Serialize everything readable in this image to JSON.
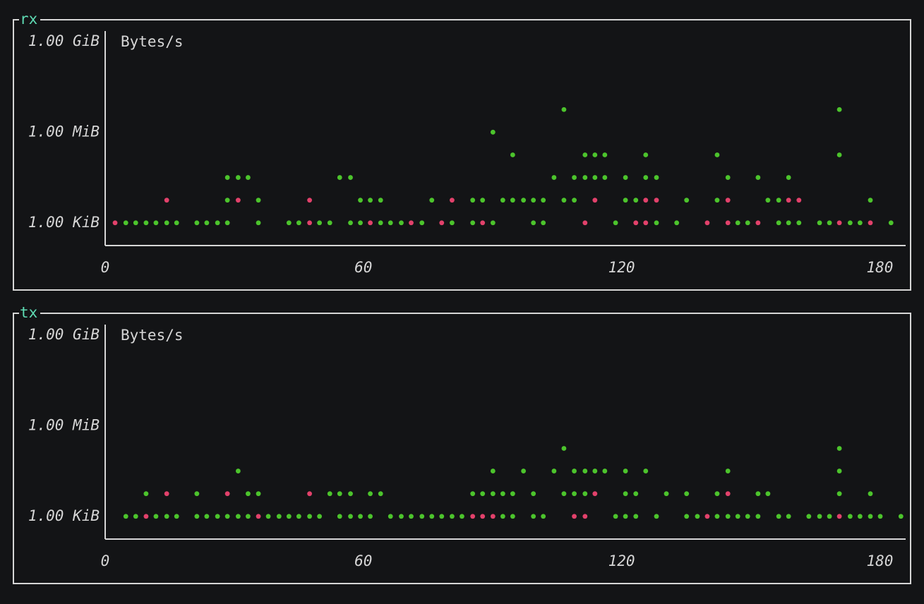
{
  "chart_data": [
    {
      "type": "scatter",
      "title": "rx",
      "ylabel": "Bytes/s",
      "log_y": true,
      "xlim": [
        0,
        186
      ],
      "xticks": [
        0,
        60,
        120,
        180
      ],
      "ylim": [
        180,
        2400000000
      ],
      "yticks": [
        {
          "value": 1024,
          "label": "1.00 KiB"
        },
        {
          "value": 1048576,
          "label": "1.00 MiB"
        },
        {
          "value": 1073741824,
          "label": "1.00 GiB"
        }
      ],
      "series": [
        {
          "color": "#e2416b",
          "x": [
            2.3,
            47.5,
            61.6,
            71.1,
            78.2,
            87.7,
            111.5,
            123.3,
            125.6,
            139.9,
            144.7,
            151.7,
            170.6,
            177.8,
            14.3,
            30.9,
            47.5,
            80.6,
            113.8,
            125.6,
            128.1,
            144.7,
            158.8,
            161.2
          ],
          "values": [
            1024,
            1024,
            1024,
            1024,
            1024,
            1024,
            1024,
            1024,
            1024,
            1024,
            1024,
            1024,
            1024,
            1024,
            5790,
            5790,
            5790,
            5790,
            5790,
            5790,
            5790,
            5790,
            5790,
            5790
          ]
        },
        {
          "color": "#4cc42c",
          "x": [
            4.8,
            7.1,
            9.5,
            11.8,
            14.3,
            16.6,
            21.3,
            23.6,
            26.1,
            28.4,
            35.6,
            42.7,
            45.0,
            49.8,
            52.2,
            57.0,
            59.3,
            64.0,
            66.3,
            68.8,
            73.6,
            80.6,
            85.4,
            90.1,
            99.5,
            101.8,
            118.6,
            128.1,
            132.8,
            147.0,
            149.3,
            156.5,
            158.8,
            161.2,
            166.0,
            168.3,
            173.1,
            175.4,
            182.6,
            28.4,
            35.6,
            59.3,
            61.6,
            64.0,
            75.9,
            85.4,
            87.7,
            92.4,
            94.7,
            97.2,
            99.5,
            101.8,
            106.6,
            109.0,
            120.9,
            123.3,
            135.1,
            142.2,
            154.0,
            156.5,
            177.8,
            28.4,
            30.9,
            33.2,
            54.5,
            57.0,
            104.3,
            109.0,
            111.5,
            113.8,
            116.1,
            120.9,
            125.6,
            128.1,
            144.7,
            151.7,
            158.8,
            94.7,
            111.5,
            113.8,
            116.1,
            125.6,
            142.2,
            170.6,
            90.1,
            106.6,
            170.6
          ],
          "values": [
            1024,
            1024,
            1024,
            1024,
            1024,
            1024,
            1024,
            1024,
            1024,
            1024,
            1024,
            1024,
            1024,
            1024,
            1024,
            1024,
            1024,
            1024,
            1024,
            1024,
            1024,
            1024,
            1024,
            1024,
            1024,
            1024,
            1024,
            1024,
            1024,
            1024,
            1024,
            1024,
            1024,
            1024,
            1024,
            1024,
            1024,
            1024,
            1024,
            5790,
            5790,
            5790,
            5790,
            5790,
            5790,
            5790,
            5790,
            5790,
            5790,
            5790,
            5790,
            5790,
            5790,
            5790,
            5790,
            5790,
            5790,
            5790,
            5790,
            5790,
            5790,
            32800,
            32800,
            32800,
            32800,
            32800,
            32800,
            32800,
            32800,
            32800,
            32800,
            32800,
            32800,
            32800,
            32800,
            32800,
            32800,
            185000,
            185000,
            185000,
            185000,
            185000,
            185000,
            185000,
            1050000,
            5930000,
            5930000
          ]
        }
      ]
    },
    {
      "type": "scatter",
      "title": "tx",
      "ylabel": "Bytes/s",
      "log_y": true,
      "xlim": [
        0,
        186
      ],
      "xticks": [
        0,
        60,
        120,
        180
      ],
      "ylim": [
        180,
        2400000000
      ],
      "yticks": [
        {
          "value": 1024,
          "label": "1.00 KiB"
        },
        {
          "value": 1048576,
          "label": "1.00 MiB"
        },
        {
          "value": 1073741824,
          "label": "1.00 GiB"
        }
      ],
      "series": [
        {
          "color": "#e2416b",
          "x": [
            9.5,
            35.6,
            85.4,
            87.7,
            90.1,
            109.0,
            111.5,
            139.9,
            170.6,
            14.3,
            28.4,
            47.5,
            113.8,
            144.7
          ],
          "values": [
            1024,
            1024,
            1024,
            1024,
            1024,
            1024,
            1024,
            1024,
            1024,
            5790,
            5790,
            5790,
            5790,
            5790
          ]
        },
        {
          "color": "#4cc42c",
          "x": [
            4.8,
            7.1,
            11.8,
            14.3,
            16.6,
            21.3,
            23.6,
            26.1,
            28.4,
            30.9,
            33.2,
            37.9,
            40.4,
            42.7,
            45.0,
            47.5,
            49.8,
            54.5,
            57.0,
            59.3,
            61.6,
            66.3,
            68.8,
            71.1,
            73.6,
            75.9,
            78.2,
            80.6,
            82.9,
            92.4,
            94.7,
            99.5,
            101.8,
            118.6,
            120.9,
            123.3,
            128.1,
            135.1,
            137.6,
            142.2,
            144.7,
            147.0,
            149.3,
            151.7,
            156.5,
            158.8,
            163.5,
            166.0,
            168.3,
            173.1,
            175.4,
            177.8,
            180.1,
            184.9,
            9.5,
            21.3,
            33.2,
            35.6,
            52.2,
            54.5,
            57.0,
            61.6,
            64.0,
            85.4,
            87.7,
            90.1,
            92.4,
            94.7,
            99.5,
            106.6,
            109.0,
            111.5,
            120.9,
            123.3,
            130.4,
            135.1,
            142.2,
            151.7,
            154.0,
            170.6,
            177.8,
            30.9,
            90.1,
            97.2,
            104.3,
            109.0,
            111.5,
            113.8,
            116.1,
            120.9,
            125.6,
            144.7,
            170.6,
            106.6,
            170.6
          ],
          "values": [
            1024,
            1024,
            1024,
            1024,
            1024,
            1024,
            1024,
            1024,
            1024,
            1024,
            1024,
            1024,
            1024,
            1024,
            1024,
            1024,
            1024,
            1024,
            1024,
            1024,
            1024,
            1024,
            1024,
            1024,
            1024,
            1024,
            1024,
            1024,
            1024,
            1024,
            1024,
            1024,
            1024,
            1024,
            1024,
            1024,
            1024,
            1024,
            1024,
            1024,
            1024,
            1024,
            1024,
            1024,
            1024,
            1024,
            1024,
            1024,
            1024,
            1024,
            1024,
            1024,
            1024,
            1024,
            5790,
            5790,
            5790,
            5790,
            5790,
            5790,
            5790,
            5790,
            5790,
            5790,
            5790,
            5790,
            5790,
            5790,
            5790,
            5790,
            5790,
            5790,
            5790,
            5790,
            5790,
            5790,
            5790,
            5790,
            5790,
            5790,
            5790,
            32800,
            32800,
            32800,
            32800,
            32800,
            32800,
            32800,
            32800,
            32800,
            32800,
            32800,
            32800,
            185000,
            185000
          ]
        }
      ]
    }
  ]
}
